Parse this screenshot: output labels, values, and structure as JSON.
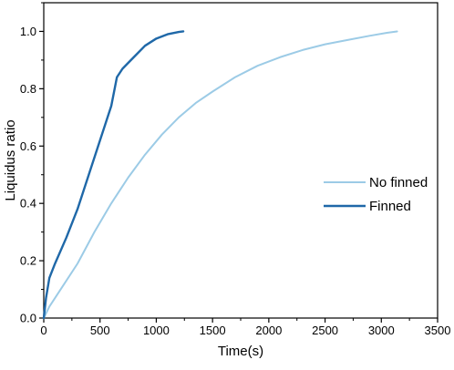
{
  "chart_data": {
    "type": "line",
    "xlabel": "Time(s)",
    "ylabel": "Liquidus ratio",
    "xlim": [
      0,
      3500
    ],
    "ylim": [
      0,
      1.1
    ],
    "x_ticks": [
      0,
      500,
      1000,
      1500,
      2000,
      2500,
      3000,
      3500
    ],
    "y_ticks": [
      0.0,
      0.2,
      0.4,
      0.6,
      0.8,
      1.0
    ],
    "y_tick_labels": [
      "0.0",
      "0.2",
      "0.4",
      "0.6",
      "0.8",
      "1.0"
    ],
    "grid": false,
    "legend_position": "center-right",
    "series": [
      {
        "name": "No finned",
        "color": "#9ccbe6",
        "x": [
          0,
          50,
          150,
          300,
          450,
          600,
          750,
          900,
          1050,
          1200,
          1350,
          1500,
          1700,
          1900,
          2100,
          2300,
          2500,
          2700,
          2900,
          3050,
          3140
        ],
        "y": [
          0,
          0.04,
          0.1,
          0.19,
          0.3,
          0.4,
          0.49,
          0.57,
          0.64,
          0.7,
          0.75,
          0.79,
          0.84,
          0.88,
          0.91,
          0.935,
          0.955,
          0.97,
          0.985,
          0.995,
          1.0
        ]
      },
      {
        "name": "Finned",
        "color": "#1f68a8",
        "x": [
          0,
          20,
          50,
          100,
          200,
          300,
          400,
          500,
          600,
          650,
          700,
          800,
          900,
          1000,
          1100,
          1200,
          1240
        ],
        "y": [
          0,
          0.07,
          0.14,
          0.19,
          0.28,
          0.38,
          0.5,
          0.62,
          0.74,
          0.84,
          0.87,
          0.91,
          0.95,
          0.975,
          0.99,
          0.998,
          1.0
        ]
      }
    ]
  }
}
